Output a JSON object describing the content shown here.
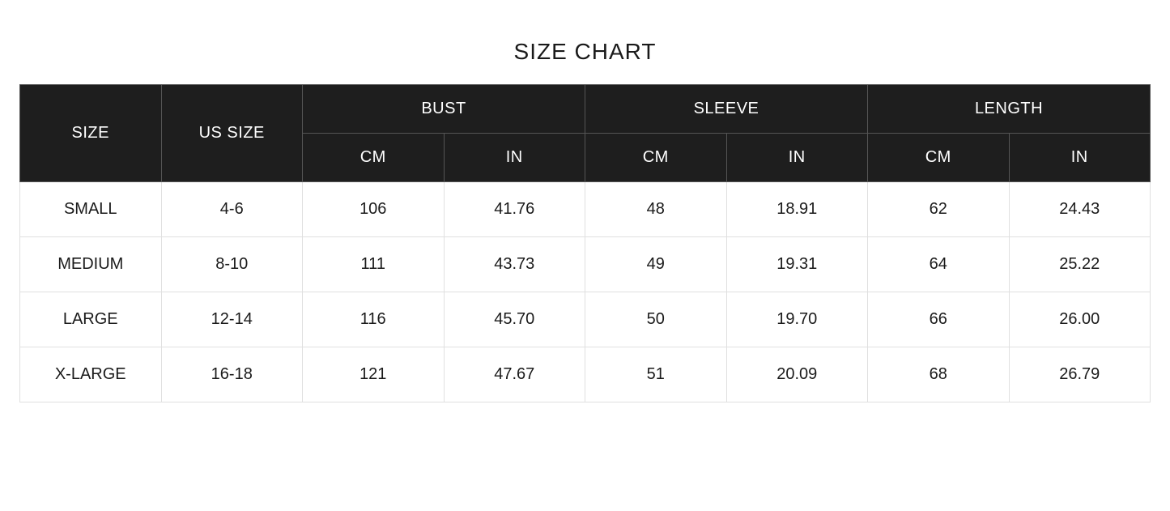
{
  "title": "SIZE CHART",
  "table": {
    "type": "table",
    "header_bg": "#1e1e1e",
    "header_text_color": "#ffffff",
    "row_bg": "#ffffff",
    "row_text_color": "#1a1a1a",
    "border_color_header": "#555555",
    "border_color_body": "#e0e0e0",
    "title_fontsize": 28,
    "cell_fontsize": 20,
    "columns": {
      "size": "SIZE",
      "us_size": "US   SIZE",
      "groups": [
        {
          "label": "BUST",
          "sub": [
            "CM",
            "IN"
          ]
        },
        {
          "label": "SLEEVE",
          "sub": [
            "CM",
            "IN"
          ]
        },
        {
          "label": "LENGTH",
          "sub": [
            "CM",
            "IN"
          ]
        }
      ]
    },
    "rows": [
      {
        "size": "SMALL",
        "us_size": "4-6",
        "bust_cm": "106",
        "bust_in": "41.76",
        "sleeve_cm": "48",
        "sleeve_in": "18.91",
        "length_cm": "62",
        "length_in": "24.43"
      },
      {
        "size": "MEDIUM",
        "us_size": "8-10",
        "bust_cm": "111",
        "bust_in": "43.73",
        "sleeve_cm": "49",
        "sleeve_in": "19.31",
        "length_cm": "64",
        "length_in": "25.22"
      },
      {
        "size": "LARGE",
        "us_size": "12-14",
        "bust_cm": "116",
        "bust_in": "45.70",
        "sleeve_cm": "50",
        "sleeve_in": "19.70",
        "length_cm": "66",
        "length_in": "26.00"
      },
      {
        "size": "X-LARGE",
        "us_size": "16-18",
        "bust_cm": "121",
        "bust_in": "47.67",
        "sleeve_cm": "51",
        "sleeve_in": "20.09",
        "length_cm": "68",
        "length_in": "26.79"
      }
    ]
  }
}
